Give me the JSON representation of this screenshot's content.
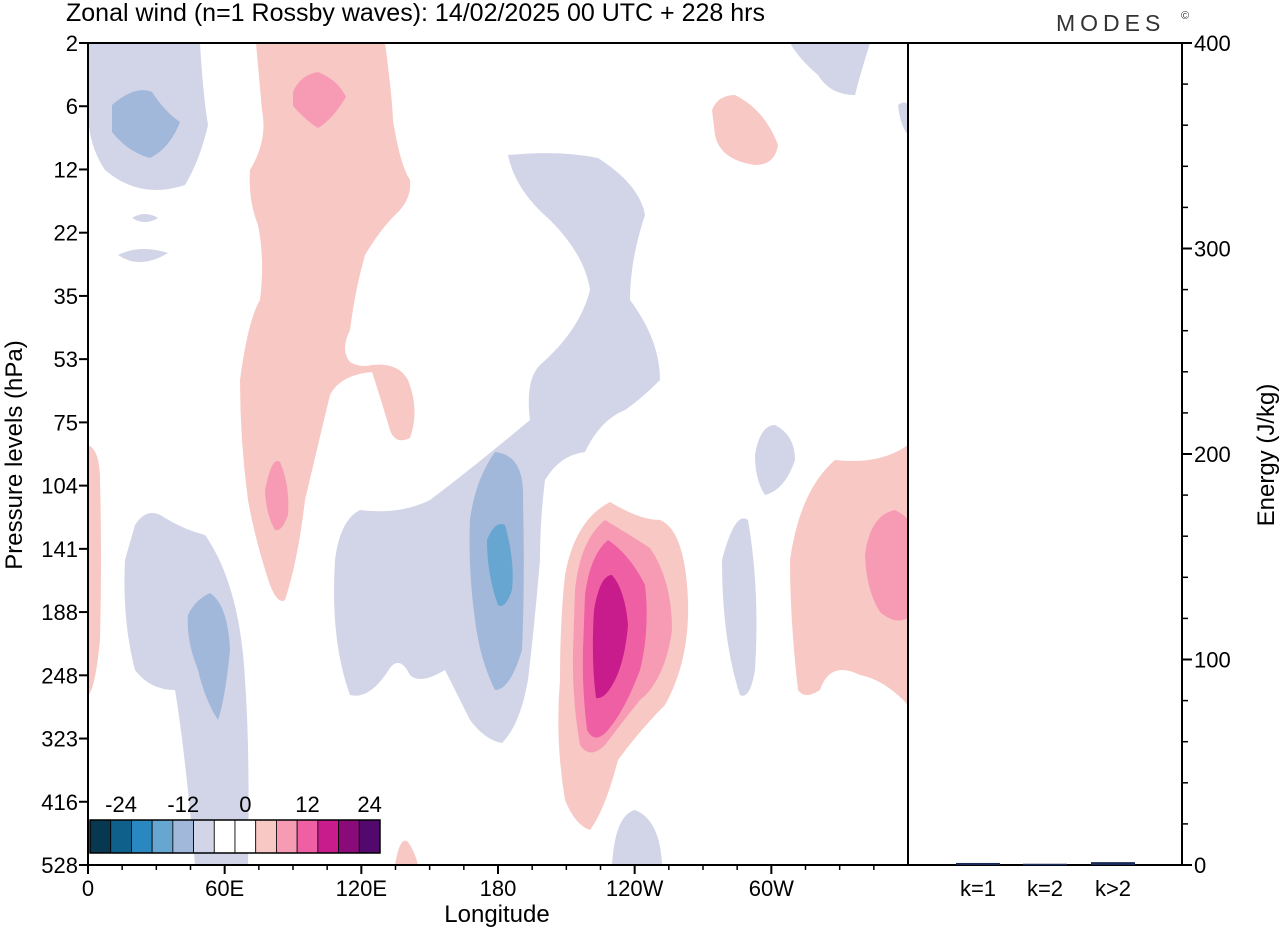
{
  "header": {
    "title": "Zonal wind (n=1 Rossby waves):  14/02/2025  00 UTC  + 228 hrs",
    "brand": "MODES",
    "brand_mark": "©"
  },
  "chart_data": [
    {
      "type": "heatmap",
      "title": "Zonal wind (n=1 Rossby waves):  14/02/2025  00 UTC  + 228 hrs",
      "xlabel": "Longitude",
      "ylabel": "Pressure levels (hPa)",
      "x_ticks": [
        "0",
        "60E",
        "120E",
        "180",
        "120W",
        "60W"
      ],
      "x_tick_degrees": [
        0,
        60,
        120,
        180,
        240,
        300
      ],
      "xlim": [
        0,
        360
      ],
      "y_ticks": [
        "2",
        "6",
        "12",
        "22",
        "35",
        "53",
        "75",
        "104",
        "141",
        "188",
        "248",
        "323",
        "416",
        "528"
      ],
      "ylim": [
        "2",
        "528"
      ],
      "colorbar": {
        "labels": [
          "-24",
          "-12",
          "0",
          "12",
          "24"
        ],
        "levels": [
          -28,
          -24,
          -20,
          -16,
          -12,
          -8,
          -4,
          0,
          4,
          8,
          12,
          16,
          20,
          24,
          28
        ],
        "colors": [
          "#08384f",
          "#10608c",
          "#2a88c0",
          "#66a6d0",
          "#a1b8da",
          "#d2d4e8",
          "#ffffff",
          "#ffffff",
          "#f8c8c4",
          "#f79bb5",
          "#ee5fa4",
          "#c81b8c",
          "#8b0a7a",
          "#53086e"
        ]
      },
      "features": [
        {
          "kind": "easterly",
          "lon": 15,
          "pressure": 10,
          "value": -12
        },
        {
          "kind": "westerly",
          "lon": 100,
          "pressure": 6,
          "value": 8
        },
        {
          "kind": "easterly",
          "lon": 185,
          "pressure": 150,
          "value": -12
        },
        {
          "kind": "easterly",
          "lon": 50,
          "pressure": 230,
          "value": -8
        },
        {
          "kind": "westerly",
          "lon": 232,
          "pressure": 200,
          "value": 16
        },
        {
          "kind": "westerly",
          "lon": 350,
          "pressure": 150,
          "value": 8
        }
      ]
    },
    {
      "type": "bar",
      "categories": [
        "k=1",
        "k=2",
        "k>2"
      ],
      "values": [
        1.0,
        0.6,
        1.4
      ],
      "ylabel": "Energy (J/kg)",
      "ylim": [
        0,
        400
      ],
      "y_ticks": [
        "0",
        "100",
        "200",
        "300",
        "400"
      ],
      "y_tick_values": [
        0,
        100,
        200,
        300,
        400
      ],
      "bar_color": "#1a2a5a"
    }
  ]
}
